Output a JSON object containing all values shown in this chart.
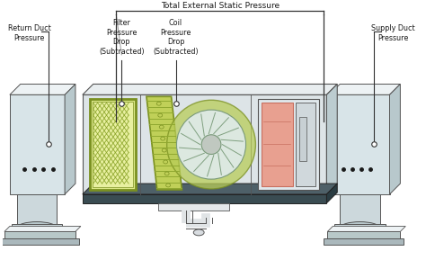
{
  "title": "Total External Static Pressure",
  "labels": {
    "return_duct": "Return Duct\nPressure",
    "filter": "Filter\nPressure\nDrop\n(Subtracted)",
    "coil": "Coil\nPressure\nDrop\n(Subtracted)",
    "supply_duct": "Supply Duct\nPressure"
  },
  "bg_color": "#ffffff",
  "text_color": "#1a1a1a",
  "duct_front": "#d8e4e8",
  "duct_top": "#edf2f4",
  "duct_side": "#b8c8cc",
  "ahu_front": "#dde4e7",
  "ahu_top": "#e8edef",
  "ahu_right": "#bcccd0",
  "ahu_dark_base": "#3a4c52",
  "ahu_base_top": "#4e6068",
  "filter_green": "#c8d860",
  "filter_border": "#7a9020",
  "filter_mesh": "#a0b840",
  "coil_green": "#c0d058",
  "coil_fin": "#90a830",
  "blower_green": "#b8cc58",
  "blower_inner": "#dce8dc",
  "supply_pink": "#e8a090",
  "supply_detail": "#c87060",
  "drain_white": "#e8ecee",
  "pedestal_col": "#ccd8dc",
  "pedestal_base": "#b8c8c8",
  "annot_line": "#333333",
  "circle_dot": "#1a1a1a",
  "line_color": "#555555"
}
